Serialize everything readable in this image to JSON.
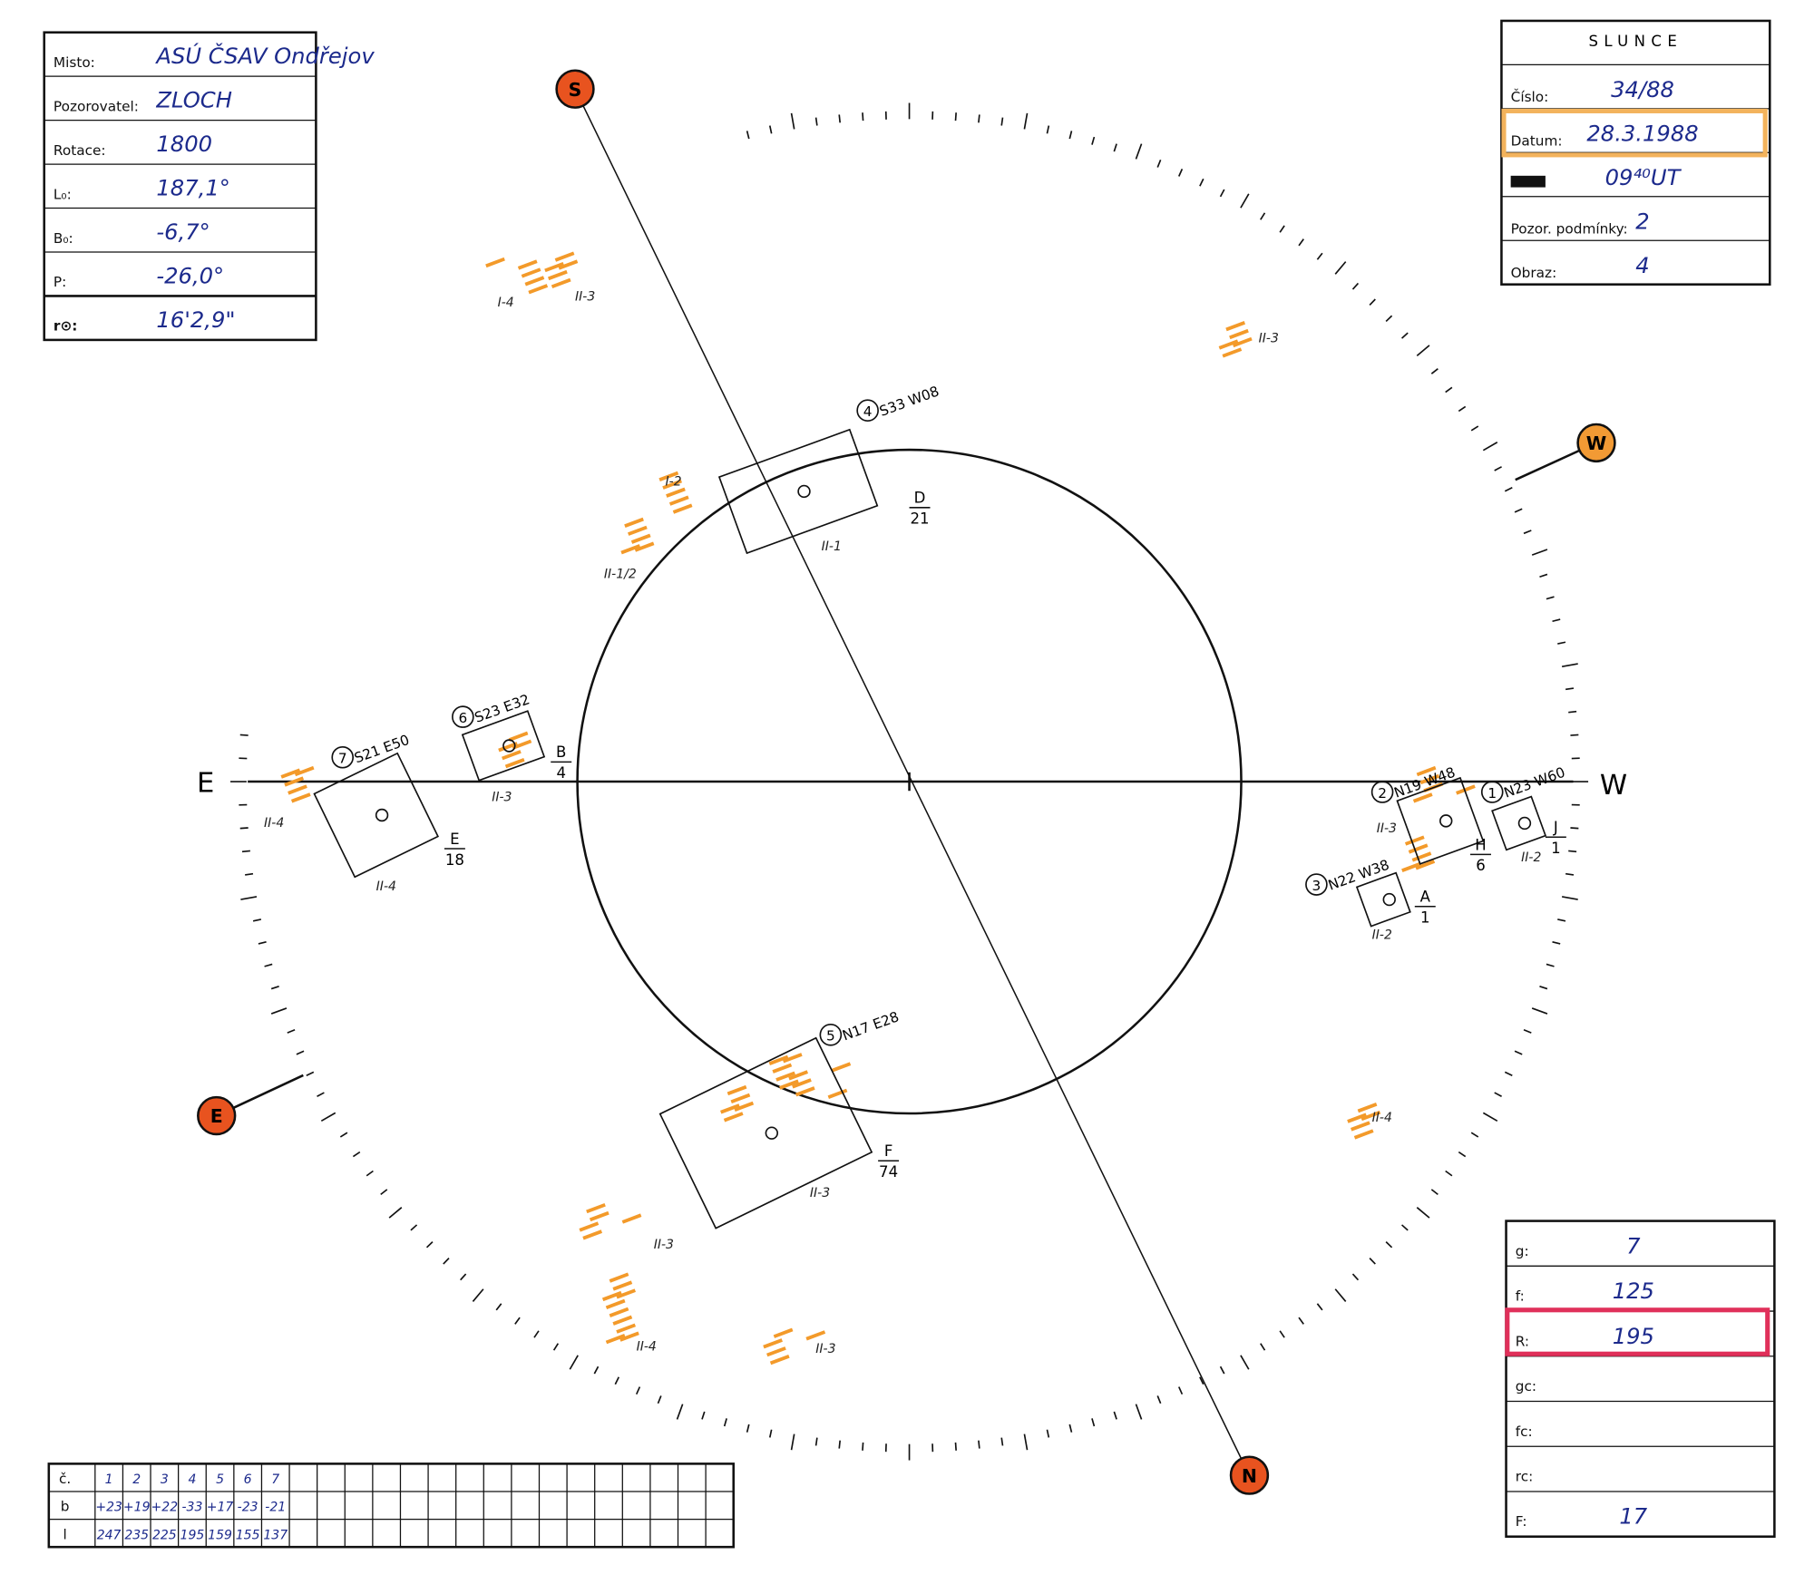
{
  "left_box": {
    "rows": [
      {
        "label": "Misto:",
        "value": "ASÚ ČSAV Ondřejov"
      },
      {
        "label": "Pozorovatel:",
        "value": "ZLOCH"
      },
      {
        "label": "Rotace:",
        "value": "1800"
      },
      {
        "label": "L₀:",
        "value": "187,1°"
      },
      {
        "label": "B₀:",
        "value": "-6,7°"
      },
      {
        "label": "P:",
        "value": "-26,0°"
      },
      {
        "label": "r⊙:",
        "value": "16'2,9\""
      }
    ]
  },
  "right_box": {
    "title": "SLUNCE",
    "rows": [
      {
        "label": "Číslo:",
        "value": "34/88"
      },
      {
        "label": "Datum:",
        "value": "28.3.1988"
      },
      {
        "value": "09⁴⁰UT"
      },
      {
        "label": "Pozor. podmínky:",
        "value": "2"
      },
      {
        "label": "Obraz:",
        "value": "4"
      }
    ]
  },
  "bottom_right_box": {
    "rows": [
      {
        "label": "g:",
        "value": "7"
      },
      {
        "label": "f:",
        "value": "125"
      },
      {
        "label": "R:",
        "value": "195"
      },
      {
        "label": "gc:"
      },
      {
        "label": "fc:"
      },
      {
        "label": "rc:"
      },
      {
        "label": "F:",
        "value": "17"
      }
    ]
  },
  "table": {
    "rows": [
      [
        "č.",
        "1",
        "2",
        "3",
        "4",
        "5",
        "6",
        "7"
      ],
      [
        "b",
        "+23",
        "+19",
        "+22",
        "-33",
        "+17",
        "-23",
        "-21"
      ],
      [
        "l",
        "247",
        "235",
        "225",
        "195",
        "159",
        "155",
        "137"
      ]
    ]
  },
  "disk": {
    "axis_east": "E",
    "axis_west": "W",
    "cardinals": {
      "S": "S",
      "W": "W",
      "N": "N",
      "E": "E"
    }
  },
  "groups": [
    {
      "no": "4",
      "coords": "S33 W08",
      "class": "D",
      "count": "21"
    },
    {
      "no": "6",
      "coords": "S23 E32",
      "class": "B",
      "count": "4"
    },
    {
      "no": "7",
      "coords": "S21 E50",
      "class": "E",
      "count": "18"
    },
    {
      "no": "2",
      "coords": "N19 W48",
      "class": "H",
      "count": "6"
    },
    {
      "no": "1",
      "coords": "N23 W60",
      "class": "J",
      "count": "1"
    },
    {
      "no": "3",
      "coords": "N22 W38",
      "class": "A",
      "count": "1"
    },
    {
      "no": "5",
      "coords": "N17 E28",
      "class": "F",
      "count": "74"
    }
  ],
  "annotations": [
    "I-4",
    "II-3",
    "II-3",
    "I-2",
    "II-1",
    "II-1/2",
    "II-3",
    "II-4",
    "II-4",
    "II-3",
    "II-2",
    "II-2",
    "II-3",
    "II-4",
    "II-4",
    "II-3",
    "II-3"
  ]
}
